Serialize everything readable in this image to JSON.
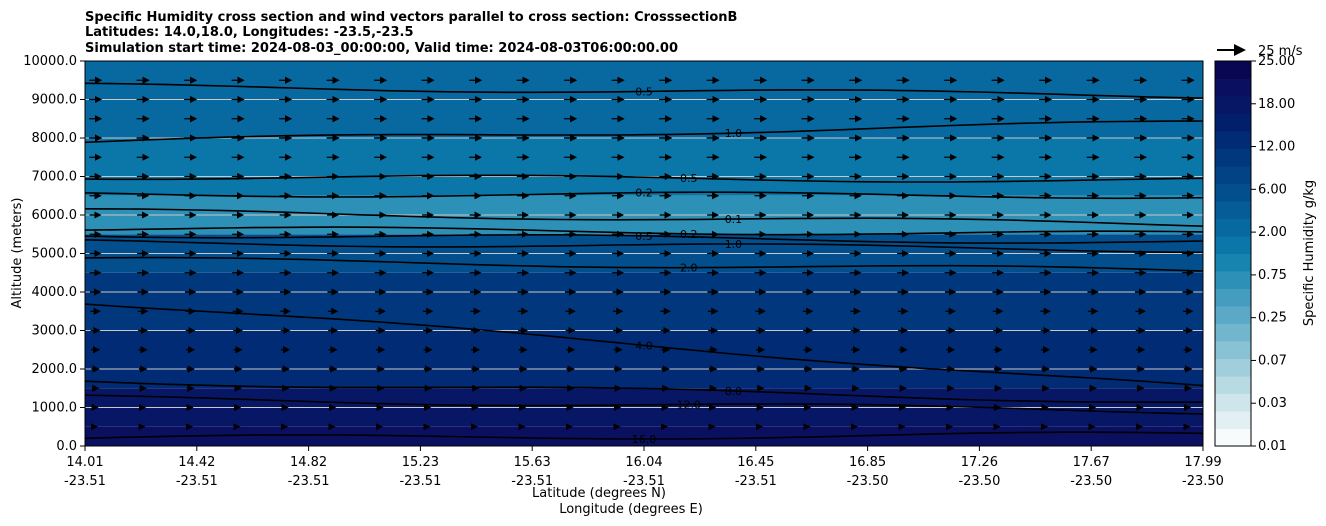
{
  "chart_data": {
    "type": "contour",
    "title_lines": [
      "Specific Humidity cross section and wind vectors parallel to cross section: CrosssectionB",
      "Latitudes: 14.0,18.0, Longitudes: -23.5,-23.5",
      "Simulation start time: 2024-08-03_00:00:00, Valid time: 2024-08-03T06:00:00.00"
    ],
    "ylabel": "Altitude (meters)",
    "xlabel_lines": [
      "Latitude (degrees N)",
      "Longitude (degrees E)"
    ],
    "ylim": [
      0,
      10000
    ],
    "y_ticks": [
      0,
      1000,
      2000,
      3000,
      4000,
      5000,
      6000,
      7000,
      8000,
      9000,
      10000
    ],
    "y_tick_labels": [
      "0.0",
      "1000.0",
      "2000.0",
      "3000.0",
      "4000.0",
      "5000.0",
      "6000.0",
      "7000.0",
      "8000.0",
      "9000.0",
      "10000.0"
    ],
    "x_ticks": [
      {
        "lat": "14.01",
        "lon": "-23.51"
      },
      {
        "lat": "14.42",
        "lon": "-23.51"
      },
      {
        "lat": "14.82",
        "lon": "-23.51"
      },
      {
        "lat": "15.23",
        "lon": "-23.51"
      },
      {
        "lat": "15.63",
        "lon": "-23.51"
      },
      {
        "lat": "16.04",
        "lon": "-23.51"
      },
      {
        "lat": "16.45",
        "lon": "-23.51"
      },
      {
        "lat": "16.85",
        "lon": "-23.50"
      },
      {
        "lat": "17.26",
        "lon": "-23.50"
      },
      {
        "lat": "17.67",
        "lon": "-23.50"
      },
      {
        "lat": "17.99",
        "lon": "-23.50"
      }
    ],
    "grid": "horizontal",
    "colorbar": {
      "label": "Specific Humidity g/kg",
      "tick_labels": [
        "0.01",
        "0.03",
        "0.07",
        "0.25",
        "0.75",
        "2.00",
        "6.00",
        "12.00",
        "18.00",
        "25.00"
      ],
      "level_colors": [
        "#f7fbfc",
        "#e2f0f3",
        "#cde5eb",
        "#b7dae3",
        "#a0cfdb",
        "#89c2d4",
        "#72b6cd",
        "#5ba9c6",
        "#449dbe",
        "#2d90b7",
        "#1783af",
        "#0b76a8",
        "#0869a0",
        "#065c97",
        "#034f8e",
        "#024386",
        "#01377d",
        "#012b74",
        "#021f6b",
        "#071766",
        "#0a0f5f",
        "#08074f"
      ]
    },
    "field_bands": [
      {
        "z_bottom": 0,
        "z_top": 500,
        "value_gkg": 14.0
      },
      {
        "z_bottom": 500,
        "z_top": 1500,
        "value_gkg": 10.0
      },
      {
        "z_bottom": 1500,
        "z_top": 3000,
        "value_gkg": 5.0
      },
      {
        "z_bottom": 3000,
        "z_top": 4500,
        "value_gkg": 3.0
      },
      {
        "z_bottom": 4500,
        "z_top": 5500,
        "value_gkg": 1.5
      },
      {
        "z_bottom": 5500,
        "z_top": 6500,
        "value_gkg": 0.3
      },
      {
        "z_bottom": 6500,
        "z_top": 8000,
        "value_gkg": 0.6
      },
      {
        "z_bottom": 8000,
        "z_top": 10000,
        "value_gkg": 0.9
      }
    ],
    "contour_lines": [
      {
        "level": "16.0",
        "z_left": 200,
        "z_right": 300
      },
      {
        "level": "12.0",
        "z_left": 1250,
        "z_right": 900
      },
      {
        "level": "8.0",
        "z_left": 1700,
        "z_right": 1150
      },
      {
        "level": "4.0",
        "z_left": 3750,
        "z_right": 1500
      },
      {
        "level": "2.0",
        "z_left": 4850,
        "z_right": 4550
      },
      {
        "level": "1.0",
        "z_left": 5300,
        "z_right": 5100
      },
      {
        "level": "0.5",
        "z_left": 5500,
        "z_right": 5300
      },
      {
        "level": "0.2",
        "z_left": 5650,
        "z_right": 5500
      },
      {
        "level": "0.1",
        "z_left": 6100,
        "z_right": 5750
      },
      {
        "level": "0.2",
        "z_left": 6550,
        "z_right": 6500
      },
      {
        "level": "0.5",
        "z_left": 7000,
        "z_right": 6900
      },
      {
        "level": "1.0",
        "z_left": 7900,
        "z_right": 8400
      },
      {
        "level": "0.5",
        "z_left": 9350,
        "z_right": 9100
      }
    ],
    "wind_vectors": {
      "direction": "parallel to cross section, northward",
      "reference_label": "25 m/s",
      "reference_speed_ms": 25,
      "speed_profile_ms": [
        {
          "z": 0,
          "speed": 2
        },
        {
          "z": 1500,
          "speed": 6
        },
        {
          "z": 3000,
          "speed": 8
        },
        {
          "z": 4500,
          "speed": 10
        },
        {
          "z": 6000,
          "speed": 10
        },
        {
          "z": 8000,
          "speed": 11
        },
        {
          "z": 10000,
          "speed": 11
        }
      ]
    }
  }
}
